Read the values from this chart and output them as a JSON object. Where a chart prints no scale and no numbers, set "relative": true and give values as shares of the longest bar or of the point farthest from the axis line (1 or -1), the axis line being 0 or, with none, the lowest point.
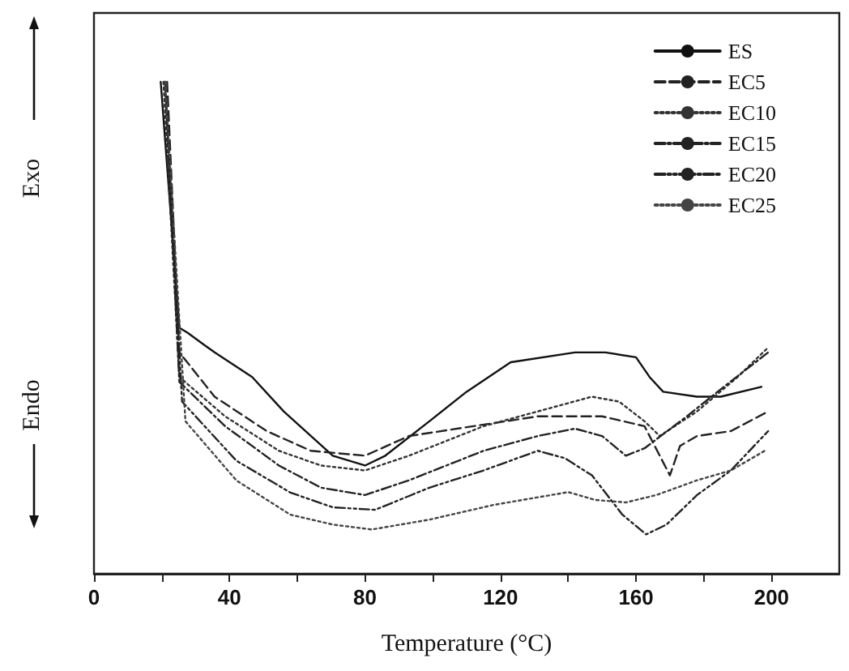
{
  "chart_data": {
    "type": "line",
    "relative": true,
    "xlabel": "Temperature (°C)",
    "annotations": [
      "Exo",
      "Endo"
    ],
    "xlim": [
      0,
      220
    ],
    "xticks": [
      0,
      {
        "value": 20,
        "label": null
      },
      40,
      {
        "value": 60,
        "label": null
      },
      80,
      {
        "value": 100,
        "label": null
      },
      120,
      {
        "value": 140,
        "label": null
      },
      160,
      {
        "value": 180,
        "label": null
      },
      200
    ],
    "tick_labels": "x",
    "legend": "top right",
    "marker": "none",
    "grid": false,
    "series": [
      {
        "name": "ES",
        "color": "#111111",
        "line_style": "solid",
        "x": [
          19.7,
          25.2,
          27.6,
          35.6,
          46.7,
          56,
          70.5,
          80,
          86,
          99,
          110,
          123,
          142,
          151,
          160,
          164,
          168,
          178,
          185,
          197
        ],
        "values": [
          1.0,
          0.5,
          0.49,
          0.45,
          0.4,
          0.33,
          0.24,
          0.22,
          0.24,
          0.31,
          0.37,
          0.43,
          0.45,
          0.45,
          0.44,
          0.4,
          0.37,
          0.36,
          0.36,
          0.38
        ]
      },
      {
        "name": "EC5",
        "color": "#222222",
        "line_style": "dashed",
        "x": [
          21.6,
          25.2,
          35.6,
          51,
          64,
          80,
          93,
          112,
          131,
          150,
          162.5,
          167,
          170,
          173,
          178,
          188,
          199
        ],
        "values": [
          1.0,
          0.45,
          0.36,
          0.29,
          0.25,
          0.24,
          0.28,
          0.3,
          0.32,
          0.32,
          0.3,
          0.24,
          0.2,
          0.26,
          0.28,
          0.29,
          0.33
        ]
      },
      {
        "name": "EC10",
        "color": "#333333",
        "line_style": "dotted",
        "x": [
          20.5,
          25.2,
          38.7,
          54.6,
          67,
          80,
          93,
          115,
          131,
          147,
          155,
          162.5,
          167,
          178,
          190,
          199
        ],
        "values": [
          1.0,
          0.4,
          0.32,
          0.25,
          0.22,
          0.21,
          0.24,
          0.3,
          0.33,
          0.36,
          0.35,
          0.31,
          0.28,
          0.33,
          0.4,
          0.46
        ]
      },
      {
        "name": "EC15",
        "color": "#222222",
        "line_style": "dashdot",
        "x": [
          21,
          25.2,
          38.7,
          54.6,
          67,
          80,
          93,
          115,
          131,
          142,
          150,
          157,
          162.5,
          175,
          185,
          199
        ],
        "values": [
          1.0,
          0.39,
          0.3,
          0.22,
          0.175,
          0.16,
          0.19,
          0.25,
          0.28,
          0.295,
          0.28,
          0.24,
          0.255,
          0.32,
          0.375,
          0.45
        ]
      },
      {
        "name": "EC20",
        "color": "#222222",
        "line_style": "dashdotdot",
        "x": [
          21,
          26,
          42,
          58,
          70.5,
          83,
          99,
          115,
          131,
          139,
          147,
          156,
          163,
          169,
          178,
          188,
          199
        ],
        "values": [
          1.0,
          0.35,
          0.23,
          0.165,
          0.135,
          0.13,
          0.175,
          0.21,
          0.25,
          0.235,
          0.2,
          0.12,
          0.08,
          0.1,
          0.16,
          0.21,
          0.29
        ]
      },
      {
        "name": "EC25",
        "color": "#444444",
        "line_style": "dotted",
        "x": [
          21,
          27,
          42,
          58,
          70.5,
          82,
          99,
          118,
          140,
          148,
          157,
          166,
          178,
          188,
          198
        ],
        "values": [
          1.0,
          0.31,
          0.19,
          0.12,
          0.1,
          0.09,
          0.11,
          0.14,
          0.166,
          0.15,
          0.145,
          0.16,
          0.19,
          0.21,
          0.25
        ]
      }
    ]
  }
}
